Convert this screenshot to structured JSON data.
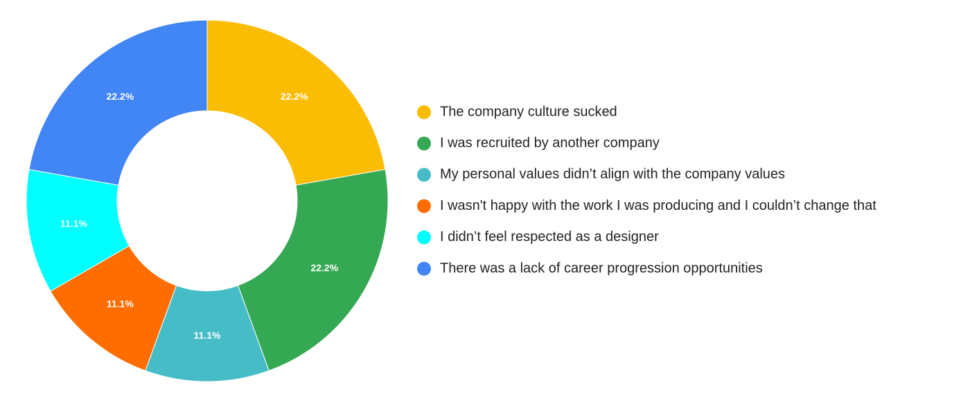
{
  "chart_data": {
    "type": "donut",
    "categories": [
      "The company culture sucked",
      "I was recruited by another company",
      "My personal values didn’t align with the company values",
      "I wasn't happy with the work I was producing and I couldn’t change that",
      "I didn’t feel respected as a designer",
      "There was a lack of career progression opportunities"
    ],
    "values": [
      22.2,
      22.2,
      11.1,
      11.1,
      11.1,
      22.2
    ],
    "value_labels": [
      "22.2%",
      "22.2%",
      "11.1%",
      "11.1%",
      "11.1%",
      "22.2%"
    ],
    "colors": [
      "#fbbc04",
      "#34a853",
      "#46bdc6",
      "#ff6d01",
      "#00ffff",
      "#4285f4"
    ],
    "legend": "right"
  }
}
